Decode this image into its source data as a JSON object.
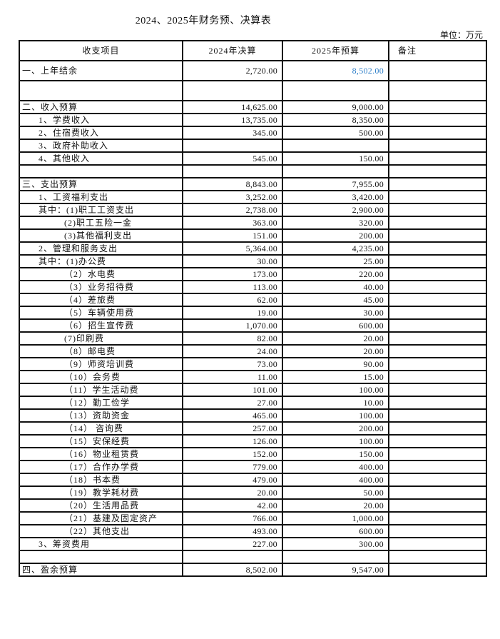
{
  "title": "2024、2025年财务预、决算表",
  "unit": "单位：万元",
  "highlight_color": "#2f7fc8",
  "headers": [
    "收支项目",
    "2024年决算",
    "2025年预算",
    "备注"
  ],
  "rows": [
    {
      "label": "一、上年结余",
      "level": 0,
      "v2024": "2,720.00",
      "v2025": "8,502.00",
      "tall": true,
      "highlight2025": true
    },
    {
      "label": "",
      "level": 0,
      "v2024": "",
      "v2025": "",
      "tall": true
    },
    {
      "label": "二、收入预算",
      "level": 0,
      "v2024": "14,625.00",
      "v2025": "9,000.00"
    },
    {
      "label": "1、学费收入",
      "level": 1,
      "v2024": "13,735.00",
      "v2025": "8,350.00"
    },
    {
      "label": "2、住宿费收入",
      "level": 1,
      "v2024": "345.00",
      "v2025": "500.00"
    },
    {
      "label": "3、政府补助收入",
      "level": 1,
      "v2024": "",
      "v2025": ""
    },
    {
      "label": "4、其他收入",
      "level": 1,
      "v2024": "545.00",
      "v2025": "150.00"
    },
    {
      "label": "",
      "level": 0,
      "v2024": "",
      "v2025": ""
    },
    {
      "label": "三、支出预算",
      "level": 0,
      "v2024": "8,843.00",
      "v2025": "7,955.00"
    },
    {
      "label": "1、工资福利支出",
      "level": 1,
      "v2024": "3,252.00",
      "v2025": "3,420.00"
    },
    {
      "label": "其中：(1)职工工资支出",
      "level": 1,
      "v2024": "2,738.00",
      "v2025": "2,900.00"
    },
    {
      "label": "(2)职工五险一金",
      "level": 2,
      "v2024": "363.00",
      "v2025": "320.00"
    },
    {
      "label": "(3)其他福利支出",
      "level": 2,
      "v2024": "151.00",
      "v2025": "200.00"
    },
    {
      "label": "2、管理和服务支出",
      "level": 1,
      "v2024": "5,364.00",
      "v2025": "4,235.00"
    },
    {
      "label": "其中：(1)办公费",
      "level": 1,
      "v2024": "30.00",
      "v2025": "25.00"
    },
    {
      "label": "（2）水电费",
      "level": 2,
      "v2024": "173.00",
      "v2025": "220.00"
    },
    {
      "label": "（3）业务招待费",
      "level": 2,
      "v2024": "113.00",
      "v2025": "40.00"
    },
    {
      "label": "（4）差旅费",
      "level": 2,
      "v2024": "62.00",
      "v2025": "45.00"
    },
    {
      "label": "（5）车辆使用费",
      "level": 2,
      "v2024": "19.00",
      "v2025": "30.00"
    },
    {
      "label": "（6）招生宣传费",
      "level": 2,
      "v2024": "1,070.00",
      "v2025": "600.00"
    },
    {
      "label": "(7)印刷费",
      "level": 2,
      "v2024": "82.00",
      "v2025": "20.00"
    },
    {
      "label": "（8）邮电费",
      "level": 2,
      "v2024": "24.00",
      "v2025": "20.00"
    },
    {
      "label": "（9）师资培训费",
      "level": 2,
      "v2024": "73.00",
      "v2025": "90.00"
    },
    {
      "label": "（10）会务费",
      "level": 2,
      "v2024": "11.00",
      "v2025": "15.00"
    },
    {
      "label": "（11）学生活动费",
      "level": 2,
      "v2024": "101.00",
      "v2025": "100.00"
    },
    {
      "label": "（12）勤工俭学",
      "level": 2,
      "v2024": "27.00",
      "v2025": "10.00"
    },
    {
      "label": "（13）资助资金",
      "level": 2,
      "v2024": "465.00",
      "v2025": "100.00"
    },
    {
      "label": "（14） 咨询费",
      "level": 2,
      "v2024": "257.00",
      "v2025": "200.00"
    },
    {
      "label": "（15）安保经费",
      "level": 2,
      "v2024": "126.00",
      "v2025": "100.00"
    },
    {
      "label": "（16）物业租赁费",
      "level": 2,
      "v2024": "152.00",
      "v2025": "150.00"
    },
    {
      "label": "（17）合作办学费",
      "level": 2,
      "v2024": "779.00",
      "v2025": "400.00"
    },
    {
      "label": "（18）书本费",
      "level": 2,
      "v2024": "479.00",
      "v2025": "400.00"
    },
    {
      "label": "（19）教学耗材费",
      "level": 2,
      "v2024": "20.00",
      "v2025": "50.00"
    },
    {
      "label": "（20）生活用品费",
      "level": 2,
      "v2024": "42.00",
      "v2025": "20.00"
    },
    {
      "label": "（21）基建及固定资产",
      "level": 2,
      "v2024": "766.00",
      "v2025": "1,000.00"
    },
    {
      "label": "（22）其他支出",
      "level": 2,
      "v2024": "493.00",
      "v2025": "600.00"
    },
    {
      "label": "3、筹资费用",
      "level": 1,
      "v2024": "227.00",
      "v2025": "300.00"
    },
    {
      "label": "",
      "level": 0,
      "v2024": "",
      "v2025": ""
    },
    {
      "label": "四、盈余预算",
      "level": 0,
      "v2024": "8,502.00",
      "v2025": "9,547.00"
    }
  ]
}
